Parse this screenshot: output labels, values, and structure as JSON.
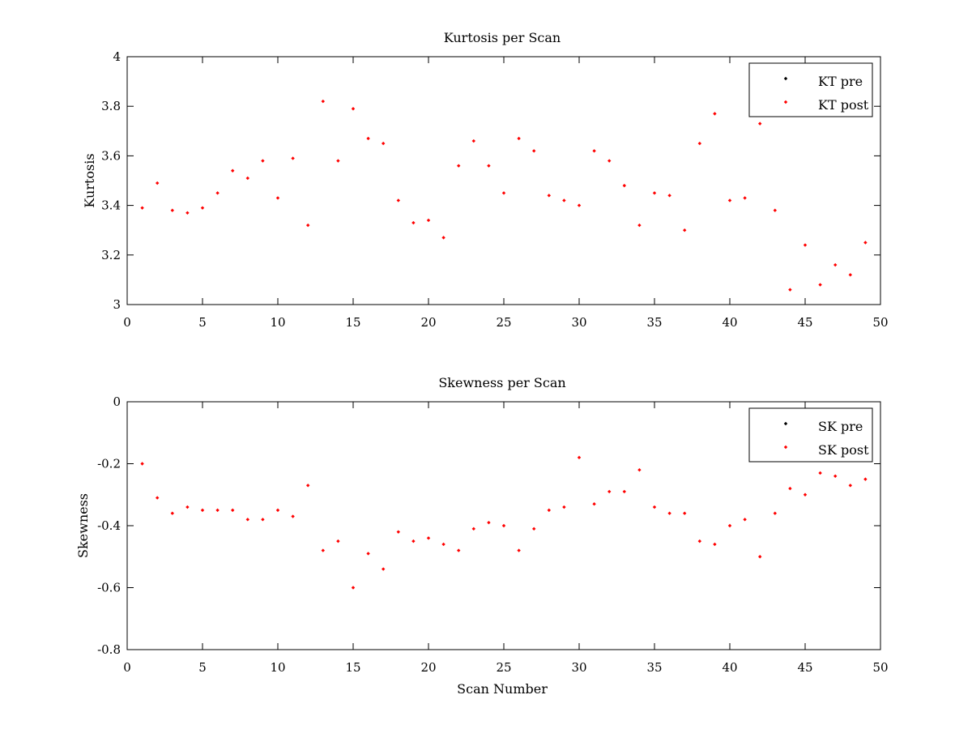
{
  "chart_data": [
    {
      "type": "scatter",
      "title": "Kurtosis per Scan",
      "xlabel": "",
      "ylabel": "Kurtosis",
      "xlim": [
        0,
        50
      ],
      "ylim": [
        3,
        4
      ],
      "xticks": [
        0,
        5,
        10,
        15,
        20,
        25,
        30,
        35,
        40,
        45,
        50
      ],
      "yticks": [
        3,
        3.2,
        3.4,
        3.6,
        3.8,
        4
      ],
      "ytick_labels": [
        "3",
        "3.2",
        "3.4",
        "3.6",
        "3.8",
        "4"
      ],
      "grid": false,
      "legend_position": "top-right",
      "series": [
        {
          "name": "KT pre",
          "color": "#000000",
          "x": [],
          "y": []
        },
        {
          "name": "KT post",
          "color": "#ff0000",
          "x": [
            1,
            2,
            3,
            4,
            5,
            6,
            7,
            8,
            9,
            10,
            11,
            12,
            13,
            14,
            15,
            16,
            17,
            18,
            19,
            20,
            21,
            22,
            23,
            24,
            25,
            26,
            27,
            28,
            29,
            30,
            31,
            32,
            33,
            34,
            35,
            36,
            37,
            38,
            39,
            40,
            41,
            42,
            43,
            44,
            45,
            46,
            47,
            48,
            49
          ],
          "y": [
            3.39,
            3.49,
            3.38,
            3.37,
            3.39,
            3.45,
            3.54,
            3.51,
            3.58,
            3.43,
            3.59,
            3.32,
            3.82,
            3.58,
            3.79,
            3.67,
            3.65,
            3.42,
            3.33,
            3.34,
            3.27,
            3.56,
            3.66,
            3.56,
            3.45,
            3.67,
            3.62,
            3.44,
            3.42,
            3.4,
            3.62,
            3.58,
            3.48,
            3.32,
            3.45,
            3.44,
            3.3,
            3.65,
            3.77,
            3.42,
            3.43,
            3.73,
            3.38,
            3.06,
            3.24,
            3.08,
            3.16,
            3.12,
            3.25
          ]
        }
      ]
    },
    {
      "type": "scatter",
      "title": "Skewness per Scan",
      "xlabel": "Scan Number",
      "ylabel": "Skewness",
      "xlim": [
        0,
        50
      ],
      "ylim": [
        -0.8,
        0
      ],
      "xticks": [
        0,
        5,
        10,
        15,
        20,
        25,
        30,
        35,
        40,
        45,
        50
      ],
      "yticks": [
        -0.8,
        -0.6,
        -0.4,
        -0.2,
        0
      ],
      "ytick_labels": [
        "-0.8",
        "-0.6",
        "-0.4",
        "-0.2",
        "0"
      ],
      "grid": false,
      "legend_position": "top-right",
      "series": [
        {
          "name": "SK pre",
          "color": "#000000",
          "x": [],
          "y": []
        },
        {
          "name": "SK post",
          "color": "#ff0000",
          "x": [
            1,
            2,
            3,
            4,
            5,
            6,
            7,
            8,
            9,
            10,
            11,
            12,
            13,
            14,
            15,
            16,
            17,
            18,
            19,
            20,
            21,
            22,
            23,
            24,
            25,
            26,
            27,
            28,
            29,
            30,
            31,
            32,
            33,
            34,
            35,
            36,
            37,
            38,
            39,
            40,
            41,
            42,
            43,
            44,
            45,
            46,
            47,
            48,
            49
          ],
          "y": [
            -0.2,
            -0.31,
            -0.36,
            -0.34,
            -0.35,
            -0.35,
            -0.35,
            -0.38,
            -0.38,
            -0.35,
            -0.37,
            -0.27,
            -0.48,
            -0.45,
            -0.6,
            -0.49,
            -0.54,
            -0.42,
            -0.45,
            -0.44,
            -0.46,
            -0.48,
            -0.41,
            -0.39,
            -0.4,
            -0.48,
            -0.41,
            -0.35,
            -0.34,
            -0.18,
            -0.33,
            -0.29,
            -0.29,
            -0.22,
            -0.34,
            -0.36,
            -0.36,
            -0.45,
            -0.46,
            -0.4,
            -0.38,
            -0.5,
            -0.36,
            -0.28,
            -0.3,
            -0.23,
            -0.24,
            -0.27,
            -0.25
          ]
        }
      ]
    }
  ]
}
